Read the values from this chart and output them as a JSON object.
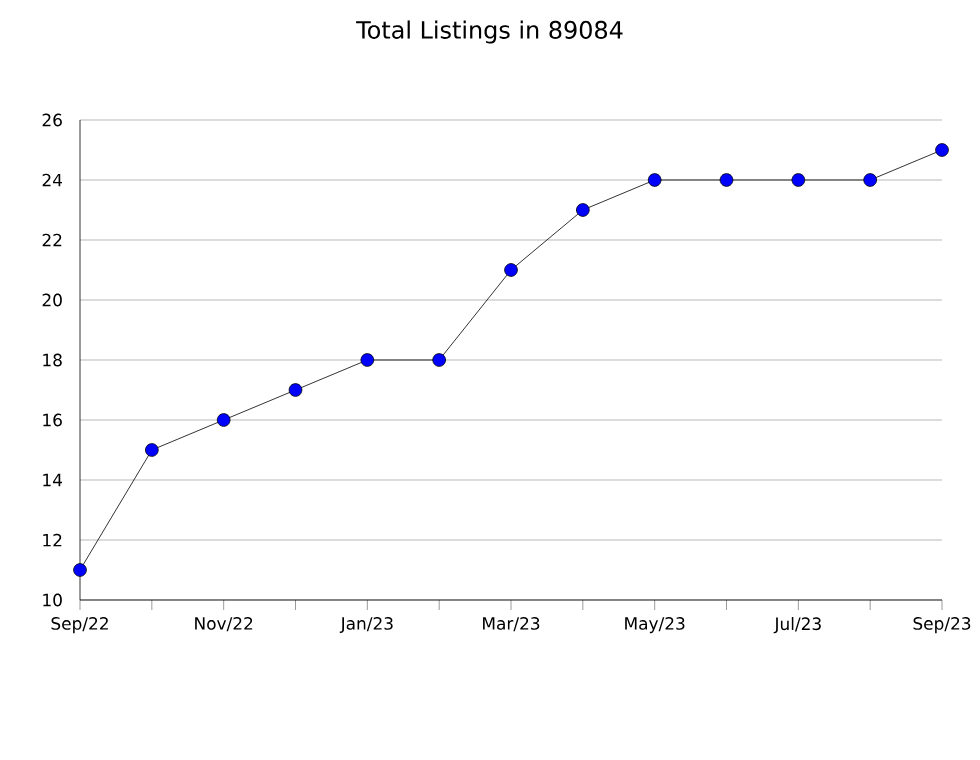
{
  "chart_data": {
    "type": "line",
    "title": "Total Listings in 89084",
    "categories": [
      "Sep/22",
      null,
      "Nov/22",
      null,
      "Jan/23",
      null,
      "Mar/23",
      null,
      "May/23",
      null,
      "Jul/23",
      null,
      "Sep/23"
    ],
    "series": [
      {
        "color": "#0000ff",
        "values": [
          11,
          15,
          16,
          17,
          18,
          18,
          21,
          23,
          24,
          24,
          24,
          24,
          25
        ]
      }
    ],
    "ylim": [
      10,
      26
    ],
    "yticks": [
      10,
      12,
      14,
      16,
      18,
      20,
      22,
      24,
      26
    ],
    "grid": "y",
    "marker": "circle",
    "line_style": "solid"
  }
}
